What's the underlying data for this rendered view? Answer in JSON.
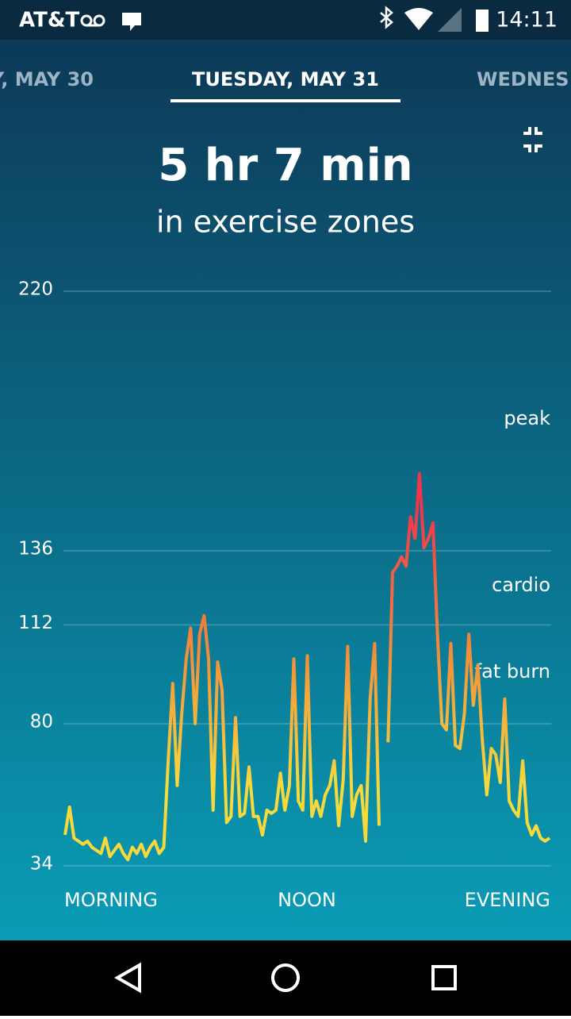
{
  "status_bar": {
    "carrier": "AT&T",
    "time": "14:11"
  },
  "tabs": {
    "previous": "Y, MAY 30",
    "current": "TUESDAY, MAY 31",
    "next": "WEDNES"
  },
  "summary": {
    "duration": "5 hr 7 min",
    "caption": "in exercise zones"
  },
  "chart_data": {
    "type": "line",
    "ylim": [
      34,
      220
    ],
    "yticks": [
      34,
      80,
      112,
      136,
      220
    ],
    "grid": true,
    "x_labels": [
      "MORNING",
      "NOON",
      "EVENING"
    ],
    "zones": [
      "peak",
      "cardio",
      "fat burn"
    ],
    "colors": [
      "#f7d93c",
      "#f28a3a",
      "#f2344a"
    ],
    "values": [
      44,
      53,
      43,
      42,
      41,
      42,
      40,
      39,
      38,
      43,
      37,
      39,
      41,
      38,
      36,
      40,
      38,
      41,
      37,
      40,
      42,
      38,
      40,
      68,
      93,
      60,
      83,
      101,
      111,
      80,
      109,
      115,
      101,
      52,
      100,
      91,
      48,
      50,
      82,
      50,
      51,
      66,
      50,
      50,
      44,
      52,
      51,
      52,
      64,
      52,
      60,
      101,
      55,
      52,
      102,
      50,
      55,
      50,
      57,
      60,
      68,
      47,
      62,
      105,
      50,
      57,
      60,
      42,
      88,
      106,
      47,
      null,
      74,
      129,
      131,
      134,
      131,
      147,
      140,
      161,
      137,
      140,
      145,
      109,
      80,
      78,
      106,
      73,
      72,
      83,
      109,
      86,
      99,
      75,
      57,
      72,
      70,
      61,
      88,
      55,
      52,
      50,
      68,
      48,
      44,
      47,
      43,
      42,
      43
    ]
  }
}
